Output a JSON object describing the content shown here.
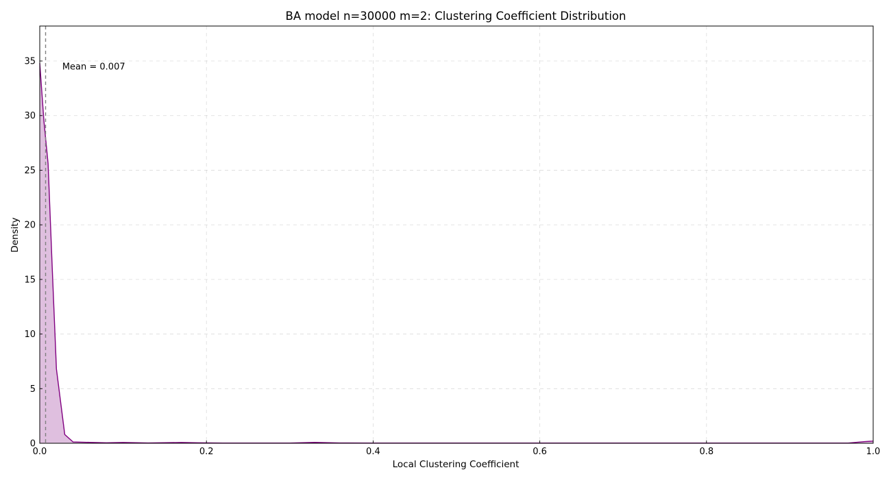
{
  "chart_data": {
    "type": "area",
    "title": "BA model n=30000 m=2: Clustering Coefficient Distribution",
    "xlabel": "Local Clustering Coefficient",
    "ylabel": "Density",
    "xlim": [
      0.0,
      1.0
    ],
    "ylim": [
      0,
      38.2
    ],
    "xticks": [
      0.0,
      0.2,
      0.4,
      0.6,
      0.8,
      1.0
    ],
    "xtick_labels": [
      "0.0",
      "0.2",
      "0.4",
      "0.6",
      "0.8",
      "1.0"
    ],
    "yticks": [
      0,
      5,
      10,
      15,
      20,
      25,
      30,
      35
    ],
    "ytick_labels": [
      "0",
      "5",
      "10",
      "15",
      "20",
      "25",
      "30",
      "35"
    ],
    "grid": true,
    "series": [
      {
        "line_color": "#800080",
        "fill_color": "#dfbfdf",
        "x": [
          0.0,
          0.005,
          0.01,
          0.015,
          0.02,
          0.03,
          0.04,
          0.06,
          0.08,
          0.1,
          0.13,
          0.15,
          0.17,
          0.19,
          0.22,
          0.25,
          0.3,
          0.33,
          0.36,
          0.4,
          0.5,
          0.6,
          0.7,
          0.8,
          0.9,
          0.97,
          0.99,
          1.0
        ],
        "y": [
          34.8,
          29.5,
          25.6,
          16.0,
          6.8,
          0.8,
          0.12,
          0.08,
          0.04,
          0.07,
          0.03,
          0.05,
          0.07,
          0.04,
          0.02,
          0.02,
          0.02,
          0.08,
          0.03,
          0.02,
          0.02,
          0.02,
          0.02,
          0.02,
          0.02,
          0.02,
          0.15,
          0.2
        ]
      }
    ],
    "mean_line": {
      "x": 0.007,
      "color": "#808080",
      "style": "dashed"
    },
    "annotation": {
      "text": "Mean = 0.007",
      "x": 0.027,
      "y": 34.5
    }
  }
}
